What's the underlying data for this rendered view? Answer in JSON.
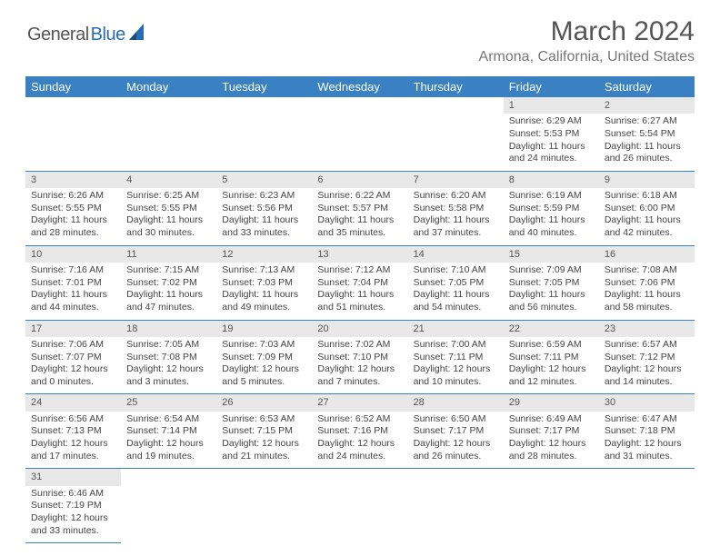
{
  "logo": {
    "part1": "General",
    "part2": "Blue"
  },
  "title": "March 2024",
  "location": "Armona, California, United States",
  "colors": {
    "header_bg": "#3a81c4",
    "header_text": "#ffffff",
    "daynum_bg": "#e8e8e8",
    "border": "#3a81c4",
    "logo_blue": "#2a6cb3"
  },
  "weekdays": [
    "Sunday",
    "Monday",
    "Tuesday",
    "Wednesday",
    "Thursday",
    "Friday",
    "Saturday"
  ],
  "weeks": [
    {
      "nums": [
        "",
        "",
        "",
        "",
        "",
        "1",
        "2"
      ],
      "cells": [
        null,
        null,
        null,
        null,
        null,
        {
          "sr": "Sunrise: 6:29 AM",
          "ss": "Sunset: 5:53 PM",
          "dl1": "Daylight: 11 hours",
          "dl2": "and 24 minutes."
        },
        {
          "sr": "Sunrise: 6:27 AM",
          "ss": "Sunset: 5:54 PM",
          "dl1": "Daylight: 11 hours",
          "dl2": "and 26 minutes."
        }
      ]
    },
    {
      "nums": [
        "3",
        "4",
        "5",
        "6",
        "7",
        "8",
        "9"
      ],
      "cells": [
        {
          "sr": "Sunrise: 6:26 AM",
          "ss": "Sunset: 5:55 PM",
          "dl1": "Daylight: 11 hours",
          "dl2": "and 28 minutes."
        },
        {
          "sr": "Sunrise: 6:25 AM",
          "ss": "Sunset: 5:55 PM",
          "dl1": "Daylight: 11 hours",
          "dl2": "and 30 minutes."
        },
        {
          "sr": "Sunrise: 6:23 AM",
          "ss": "Sunset: 5:56 PM",
          "dl1": "Daylight: 11 hours",
          "dl2": "and 33 minutes."
        },
        {
          "sr": "Sunrise: 6:22 AM",
          "ss": "Sunset: 5:57 PM",
          "dl1": "Daylight: 11 hours",
          "dl2": "and 35 minutes."
        },
        {
          "sr": "Sunrise: 6:20 AM",
          "ss": "Sunset: 5:58 PM",
          "dl1": "Daylight: 11 hours",
          "dl2": "and 37 minutes."
        },
        {
          "sr": "Sunrise: 6:19 AM",
          "ss": "Sunset: 5:59 PM",
          "dl1": "Daylight: 11 hours",
          "dl2": "and 40 minutes."
        },
        {
          "sr": "Sunrise: 6:18 AM",
          "ss": "Sunset: 6:00 PM",
          "dl1": "Daylight: 11 hours",
          "dl2": "and 42 minutes."
        }
      ]
    },
    {
      "nums": [
        "10",
        "11",
        "12",
        "13",
        "14",
        "15",
        "16"
      ],
      "cells": [
        {
          "sr": "Sunrise: 7:16 AM",
          "ss": "Sunset: 7:01 PM",
          "dl1": "Daylight: 11 hours",
          "dl2": "and 44 minutes."
        },
        {
          "sr": "Sunrise: 7:15 AM",
          "ss": "Sunset: 7:02 PM",
          "dl1": "Daylight: 11 hours",
          "dl2": "and 47 minutes."
        },
        {
          "sr": "Sunrise: 7:13 AM",
          "ss": "Sunset: 7:03 PM",
          "dl1": "Daylight: 11 hours",
          "dl2": "and 49 minutes."
        },
        {
          "sr": "Sunrise: 7:12 AM",
          "ss": "Sunset: 7:04 PM",
          "dl1": "Daylight: 11 hours",
          "dl2": "and 51 minutes."
        },
        {
          "sr": "Sunrise: 7:10 AM",
          "ss": "Sunset: 7:05 PM",
          "dl1": "Daylight: 11 hours",
          "dl2": "and 54 minutes."
        },
        {
          "sr": "Sunrise: 7:09 AM",
          "ss": "Sunset: 7:05 PM",
          "dl1": "Daylight: 11 hours",
          "dl2": "and 56 minutes."
        },
        {
          "sr": "Sunrise: 7:08 AM",
          "ss": "Sunset: 7:06 PM",
          "dl1": "Daylight: 11 hours",
          "dl2": "and 58 minutes."
        }
      ]
    },
    {
      "nums": [
        "17",
        "18",
        "19",
        "20",
        "21",
        "22",
        "23"
      ],
      "cells": [
        {
          "sr": "Sunrise: 7:06 AM",
          "ss": "Sunset: 7:07 PM",
          "dl1": "Daylight: 12 hours",
          "dl2": "and 0 minutes."
        },
        {
          "sr": "Sunrise: 7:05 AM",
          "ss": "Sunset: 7:08 PM",
          "dl1": "Daylight: 12 hours",
          "dl2": "and 3 minutes."
        },
        {
          "sr": "Sunrise: 7:03 AM",
          "ss": "Sunset: 7:09 PM",
          "dl1": "Daylight: 12 hours",
          "dl2": "and 5 minutes."
        },
        {
          "sr": "Sunrise: 7:02 AM",
          "ss": "Sunset: 7:10 PM",
          "dl1": "Daylight: 12 hours",
          "dl2": "and 7 minutes."
        },
        {
          "sr": "Sunrise: 7:00 AM",
          "ss": "Sunset: 7:11 PM",
          "dl1": "Daylight: 12 hours",
          "dl2": "and 10 minutes."
        },
        {
          "sr": "Sunrise: 6:59 AM",
          "ss": "Sunset: 7:11 PM",
          "dl1": "Daylight: 12 hours",
          "dl2": "and 12 minutes."
        },
        {
          "sr": "Sunrise: 6:57 AM",
          "ss": "Sunset: 7:12 PM",
          "dl1": "Daylight: 12 hours",
          "dl2": "and 14 minutes."
        }
      ]
    },
    {
      "nums": [
        "24",
        "25",
        "26",
        "27",
        "28",
        "29",
        "30"
      ],
      "cells": [
        {
          "sr": "Sunrise: 6:56 AM",
          "ss": "Sunset: 7:13 PM",
          "dl1": "Daylight: 12 hours",
          "dl2": "and 17 minutes."
        },
        {
          "sr": "Sunrise: 6:54 AM",
          "ss": "Sunset: 7:14 PM",
          "dl1": "Daylight: 12 hours",
          "dl2": "and 19 minutes."
        },
        {
          "sr": "Sunrise: 6:53 AM",
          "ss": "Sunset: 7:15 PM",
          "dl1": "Daylight: 12 hours",
          "dl2": "and 21 minutes."
        },
        {
          "sr": "Sunrise: 6:52 AM",
          "ss": "Sunset: 7:16 PM",
          "dl1": "Daylight: 12 hours",
          "dl2": "and 24 minutes."
        },
        {
          "sr": "Sunrise: 6:50 AM",
          "ss": "Sunset: 7:17 PM",
          "dl1": "Daylight: 12 hours",
          "dl2": "and 26 minutes."
        },
        {
          "sr": "Sunrise: 6:49 AM",
          "ss": "Sunset: 7:17 PM",
          "dl1": "Daylight: 12 hours",
          "dl2": "and 28 minutes."
        },
        {
          "sr": "Sunrise: 6:47 AM",
          "ss": "Sunset: 7:18 PM",
          "dl1": "Daylight: 12 hours",
          "dl2": "and 31 minutes."
        }
      ]
    },
    {
      "nums": [
        "31",
        "",
        "",
        "",
        "",
        "",
        ""
      ],
      "cells": [
        {
          "sr": "Sunrise: 6:46 AM",
          "ss": "Sunset: 7:19 PM",
          "dl1": "Daylight: 12 hours",
          "dl2": "and 33 minutes."
        },
        null,
        null,
        null,
        null,
        null,
        null
      ]
    }
  ]
}
